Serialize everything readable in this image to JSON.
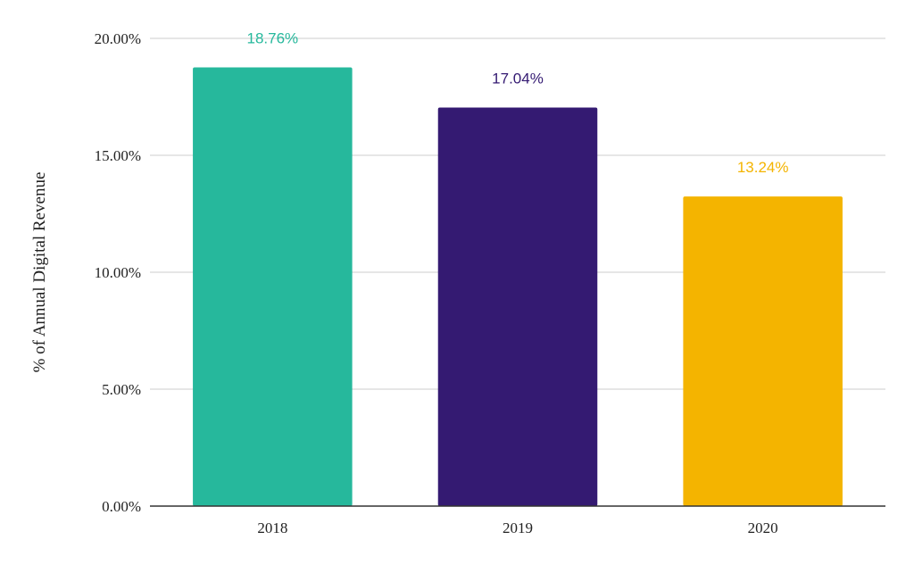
{
  "chart_data": {
    "type": "bar",
    "title": "",
    "xlabel": "",
    "ylabel": "% of Annual Digital Revenue",
    "categories": [
      "2018",
      "2019",
      "2020"
    ],
    "values": [
      18.76,
      17.04,
      13.24
    ],
    "data_labels": [
      "18.76%",
      "17.04%",
      "13.24%"
    ],
    "colors": [
      "#26b89c",
      "#341a72",
      "#f4b400"
    ],
    "ylim": [
      0,
      20
    ],
    "yticks": [
      0,
      5,
      10,
      15,
      20
    ],
    "ytick_labels": [
      "0.00%",
      "5.00%",
      "10.00%",
      "15.00%",
      "20.00%"
    ],
    "grid": true,
    "legend": "none"
  }
}
